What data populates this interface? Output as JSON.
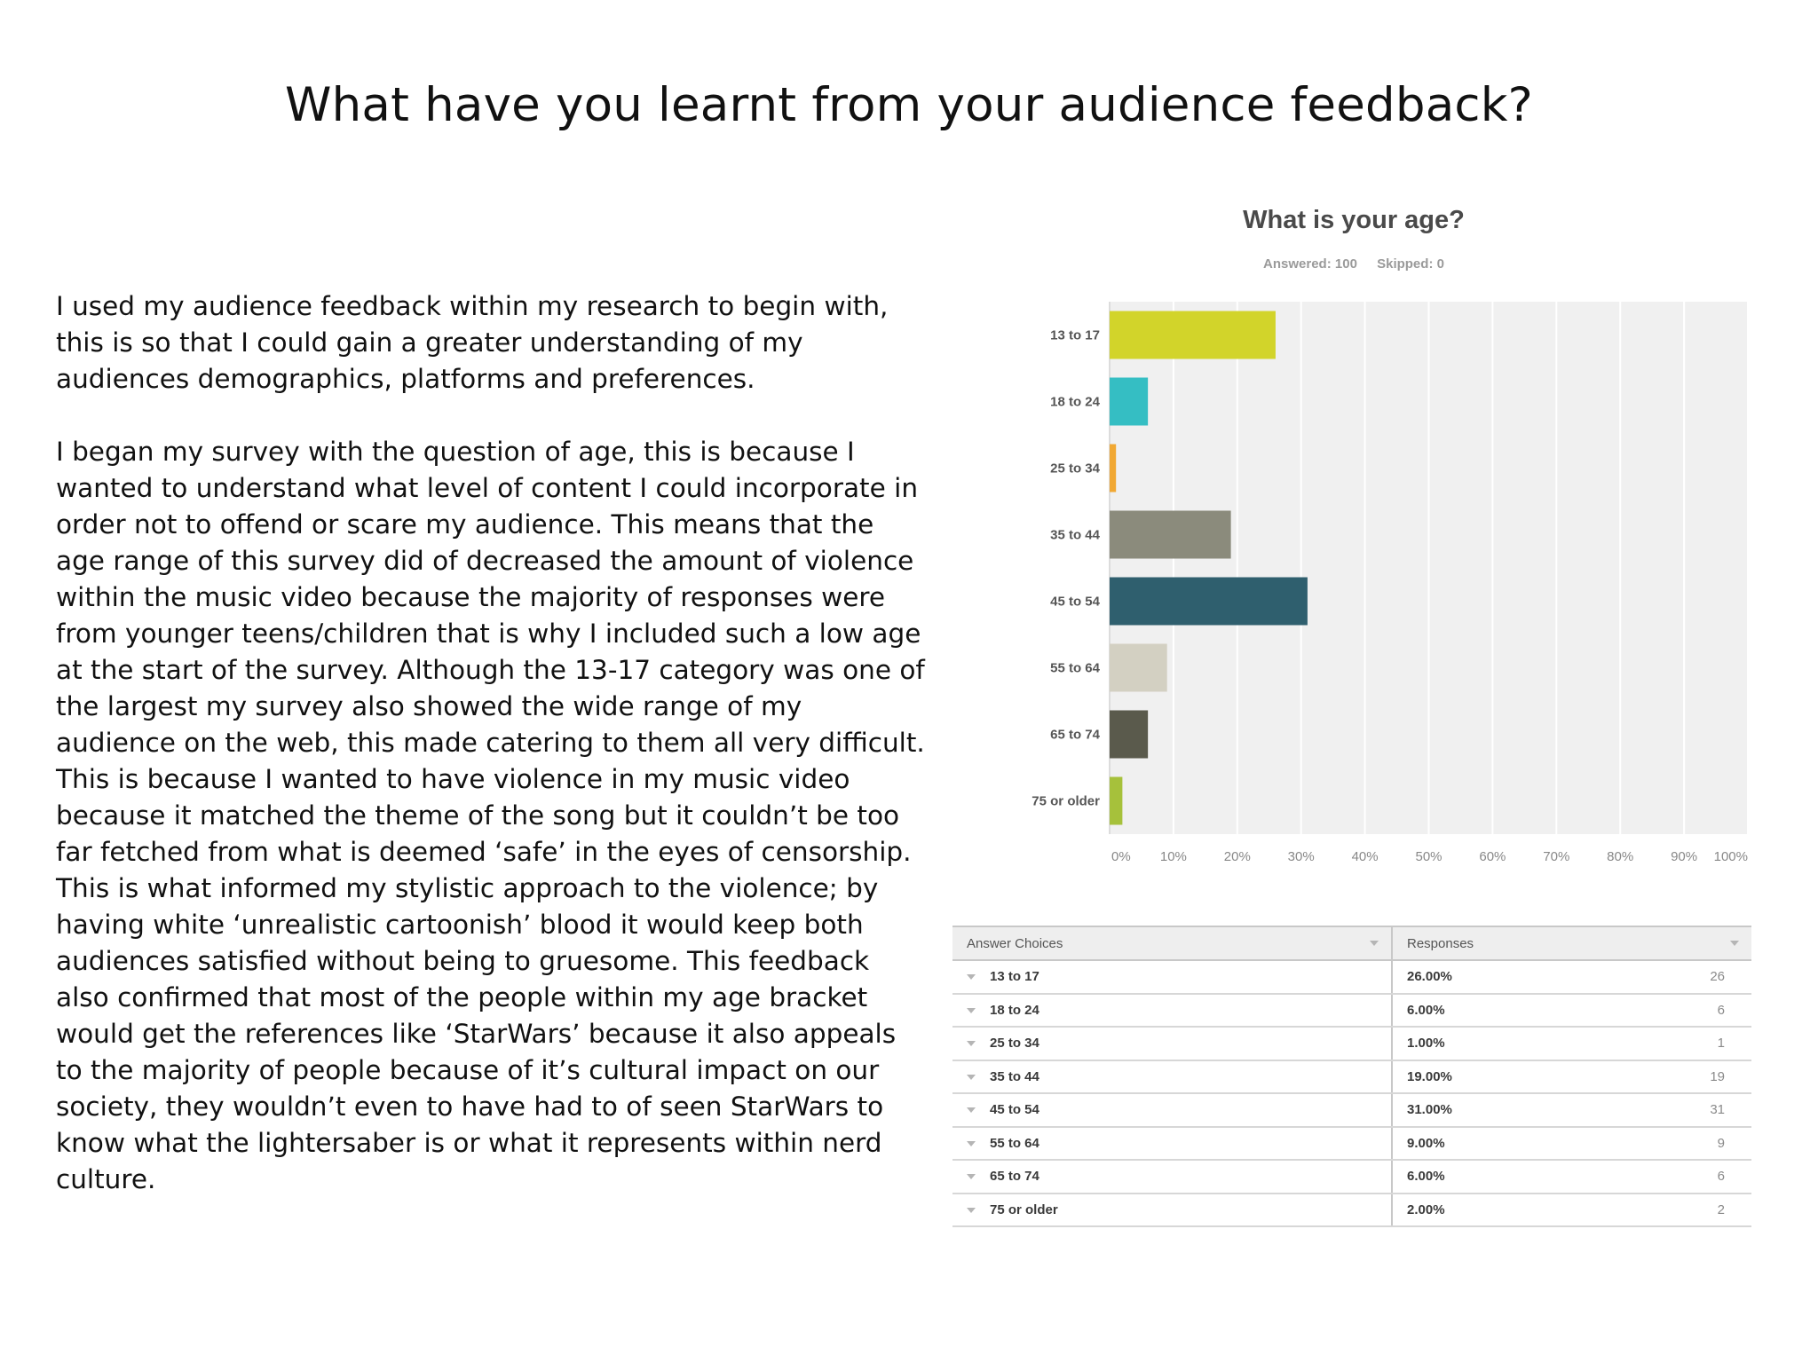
{
  "slide": {
    "title": "What have you learnt from your audience feedback?",
    "paragraphs": [
      "I used my audience feedback within my research to begin with, this is so that I could gain a greater understanding of my audiences demographics, platforms and preferences.",
      "I began my survey with the question of age, this is because I wanted to understand what level of content I could incorporate in order not to offend or scare my audience. This means that the age range of this survey did of decreased the amount of violence within the music video because the majority of responses were from younger teens/children that is why I included such a low age at the start of the survey. Although the 13-17 category was one of the largest my survey also showed the wide range of my audience on the web, this made catering to them all very difficult. This is because I wanted to have violence in my music video because it matched the theme of the song but it couldn’t be too far fetched from what is deemed ‘safe’ in the eyes of censorship. This is what informed my stylistic approach to the violence; by having white ‘unrealistic cartoonish’ blood it would keep both audiences satisfied without being to gruesome. This feedback also confirmed that most of the people within my age bracket would get the references like ‘StarWars’ because it also appeals to the majority of people because of it’s cultural impact on our society, they wouldn’t even to have had to of seen StarWars to know what the lightersaber is or what it represents within nerd culture."
    ]
  },
  "chart_data": {
    "type": "bar",
    "orientation": "horizontal",
    "title": "What is your age?",
    "answered_label": "Answered: 100",
    "skipped_label": "Skipped: 0",
    "categories": [
      "13 to 17",
      "18 to 24",
      "25 to 34",
      "35 to 44",
      "45 to 54",
      "55 to 64",
      "65 to 74",
      "75 or older"
    ],
    "values": [
      26,
      6,
      1,
      19,
      31,
      9,
      6,
      2
    ],
    "colors": [
      "#d2d42a",
      "#35bec3",
      "#f1a833",
      "#8b8b7c",
      "#2f5f6e",
      "#d3d0c2",
      "#5a5a4c",
      "#a6c13b"
    ],
    "xlim": [
      0,
      100
    ],
    "x_tick_labels": [
      "0%",
      "10%",
      "20%",
      "30%",
      "40%",
      "50%",
      "60%",
      "70%",
      "80%",
      "90%",
      "100%"
    ],
    "grid": true,
    "plot_background": "#f0f0f0"
  },
  "table": {
    "headers": [
      "Answer Choices",
      "Responses"
    ],
    "rows": [
      {
        "choice": "13 to 17",
        "percent": "26.00%",
        "count": "26"
      },
      {
        "choice": "18 to 24",
        "percent": "6.00%",
        "count": "6"
      },
      {
        "choice": "25 to 34",
        "percent": "1.00%",
        "count": "1"
      },
      {
        "choice": "35 to 44",
        "percent": "19.00%",
        "count": "19"
      },
      {
        "choice": "45 to 54",
        "percent": "31.00%",
        "count": "31"
      },
      {
        "choice": "55 to 64",
        "percent": "9.00%",
        "count": "9"
      },
      {
        "choice": "65 to 74",
        "percent": "6.00%",
        "count": "6"
      },
      {
        "choice": "75 or older",
        "percent": "2.00%",
        "count": "2"
      }
    ]
  }
}
